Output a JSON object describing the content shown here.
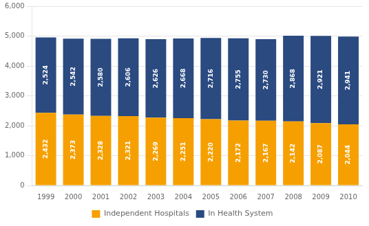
{
  "chart_data": {
    "type": "bar",
    "categories": [
      "1999",
      "2000",
      "2001",
      "2002",
      "2003",
      "2004",
      "2005",
      "2006",
      "2007",
      "2008",
      "2009",
      "2010"
    ],
    "series": [
      {
        "name": "Independent Hospitals",
        "color": "#F5A000",
        "values": [
          2432,
          2373,
          2328,
          2321,
          2269,
          2251,
          2220,
          2172,
          2167,
          2142,
          2087,
          2044
        ],
        "value_labels": [
          "2,432",
          "2,373",
          "2,328",
          "2,321",
          "2,269",
          "2,251",
          "2,220",
          "2,172",
          "2,167",
          "2,142",
          "2,087",
          "2,044"
        ]
      },
      {
        "name": "In Health System",
        "color": "#2A4A80",
        "values": [
          2524,
          2542,
          2580,
          2606,
          2626,
          2668,
          2716,
          2755,
          2730,
          2868,
          2921,
          2941
        ],
        "value_labels": [
          "2,524",
          "2,542",
          "2,580",
          "2,606",
          "2,626",
          "2,668",
          "2,716",
          "2,755",
          "2,730",
          "2,868",
          "2,921",
          "2,941"
        ]
      }
    ],
    "stacked": true,
    "ylim": [
      0,
      6000
    ],
    "yticks": [
      0,
      {
        "value": 1000,
        "label": "1,000"
      },
      {
        "value": 2000,
        "label": "2,000"
      },
      {
        "value": 3000,
        "label": "3,000"
      },
      {
        "value": 4000,
        "label": "4,000"
      },
      {
        "value": 5000,
        "label": "5,000"
      },
      {
        "value": 6000,
        "label": "6,000"
      }
    ],
    "grid": true,
    "data_labels": true,
    "legend": "bottom"
  }
}
